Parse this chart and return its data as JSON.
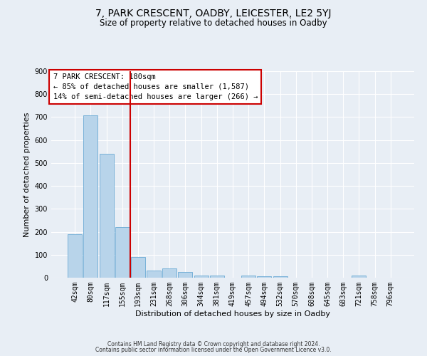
{
  "title": "7, PARK CRESCENT, OADBY, LEICESTER, LE2 5YJ",
  "subtitle": "Size of property relative to detached houses in Oadby",
  "xlabel": "Distribution of detached houses by size in Oadby",
  "ylabel": "Number of detached properties",
  "bar_labels": [
    "42sqm",
    "80sqm",
    "117sqm",
    "155sqm",
    "193sqm",
    "231sqm",
    "268sqm",
    "306sqm",
    "344sqm",
    "381sqm",
    "419sqm",
    "457sqm",
    "494sqm",
    "532sqm",
    "570sqm",
    "608sqm",
    "645sqm",
    "683sqm",
    "721sqm",
    "758sqm",
    "796sqm"
  ],
  "bar_values": [
    190,
    707,
    540,
    220,
    90,
    30,
    40,
    25,
    10,
    10,
    0,
    10,
    5,
    5,
    0,
    0,
    0,
    0,
    10,
    0,
    0
  ],
  "bar_color": "#b8d4ea",
  "bar_edge_color": "#6aaad4",
  "ylim": [
    0,
    900
  ],
  "yticks": [
    0,
    100,
    200,
    300,
    400,
    500,
    600,
    700,
    800,
    900
  ],
  "vline_index": 3.5,
  "vline_color": "#cc0000",
  "annotation_title": "7 PARK CRESCENT: 180sqm",
  "annotation_line1": "← 85% of detached houses are smaller (1,587)",
  "annotation_line2": "14% of semi-detached houses are larger (266) →",
  "annotation_box_facecolor": "#ffffff",
  "annotation_box_edgecolor": "#cc0000",
  "footer_line1": "Contains HM Land Registry data © Crown copyright and database right 2024.",
  "footer_line2": "Contains public sector information licensed under the Open Government Licence v3.0.",
  "background_color": "#e8eef5",
  "grid_color": "#ffffff",
  "title_fontsize": 10,
  "subtitle_fontsize": 8.5,
  "axis_label_fontsize": 8,
  "tick_fontsize": 7,
  "annotation_fontsize": 7.5,
  "footer_fontsize": 5.5
}
